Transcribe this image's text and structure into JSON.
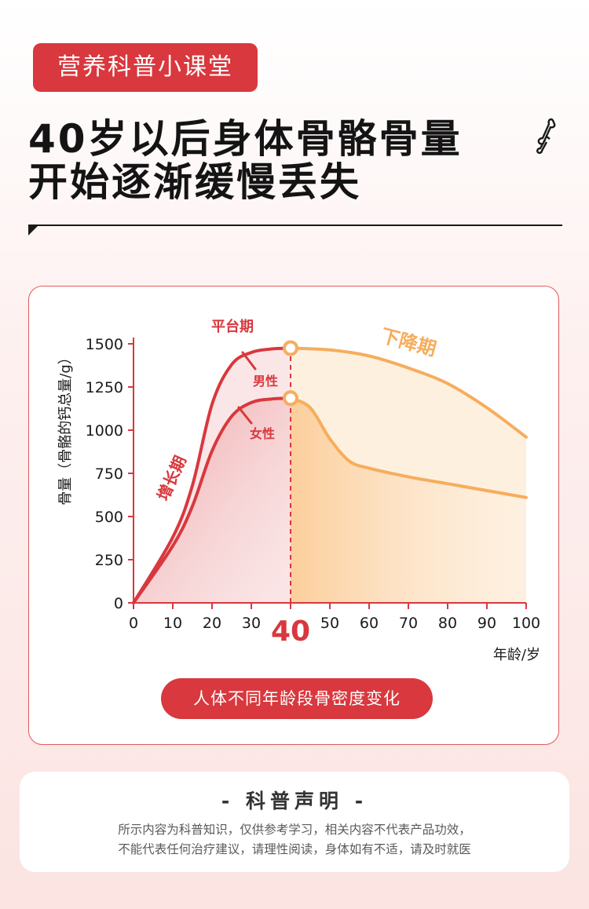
{
  "header": {
    "badge": "营养科普小课堂",
    "title_line1": "40岁以后身体骨骼骨量",
    "title_line2": "开始逐渐缓慢丢失"
  },
  "chart_data": {
    "type": "line",
    "ylabel": "骨量（骨骼的钙总量/g）",
    "xlabel": "年龄/岁",
    "xlim": [
      0,
      100
    ],
    "ylim": [
      0,
      1500
    ],
    "xticks": [
      0,
      10,
      20,
      30,
      40,
      50,
      60,
      70,
      80,
      90,
      100
    ],
    "yticks": [
      0,
      250,
      500,
      750,
      1000,
      1250,
      1500
    ],
    "highlight_x_label": "40",
    "series": [
      {
        "name": "男性",
        "x": [
          0,
          10,
          15,
          20,
          25,
          30,
          35,
          40,
          50,
          60,
          70,
          80,
          90,
          100
        ],
        "y": [
          0,
          380,
          680,
          1150,
          1380,
          1450,
          1470,
          1475,
          1465,
          1430,
          1360,
          1270,
          1130,
          960
        ]
      },
      {
        "name": "女性",
        "x": [
          0,
          10,
          15,
          20,
          25,
          30,
          35,
          40,
          45,
          50,
          55,
          60,
          70,
          80,
          90,
          100
        ],
        "y": [
          0,
          330,
          560,
          880,
          1080,
          1160,
          1180,
          1185,
          1130,
          950,
          820,
          780,
          730,
          690,
          650,
          610
        ]
      }
    ],
    "annotations": [
      "平台期",
      "下降期",
      "增长期"
    ],
    "colors": {
      "growth": "#d8383e",
      "decline": "#f6ad5c",
      "marker": "#f6ad5c"
    }
  },
  "caption": "人体不同年龄段骨密度变化",
  "disclaimer": {
    "title": "- 科普声明 -",
    "line1": "所示内容为科普知识，仅供参考学习，相关内容不代表产品功效，",
    "line2": "不能代表任何治疗建议，请理性阅读，身体如有不适，请及时就医"
  }
}
